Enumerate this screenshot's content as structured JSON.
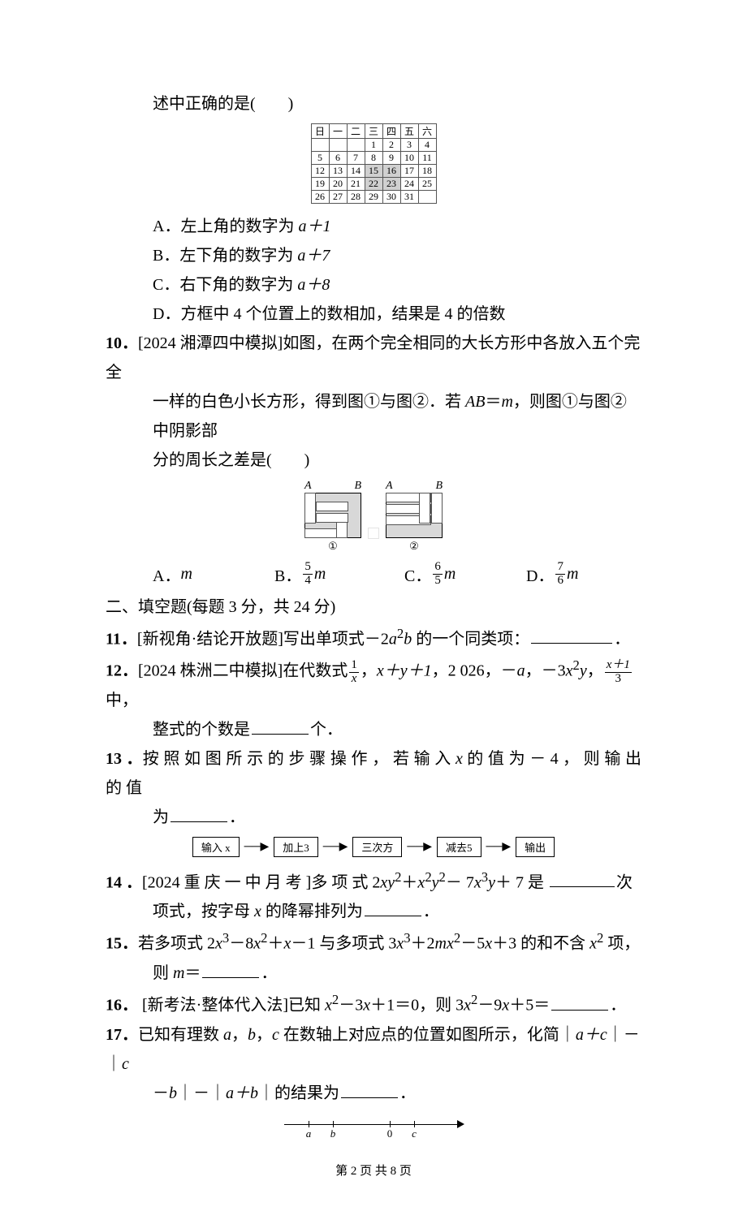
{
  "q_cont": {
    "tail": "述中正确的是(　　)"
  },
  "calendar": {
    "header": [
      "日",
      "一",
      "二",
      "三",
      "四",
      "五",
      "六"
    ],
    "rows": [
      [
        "",
        "",
        "",
        "1",
        "2",
        "3",
        "4"
      ],
      [
        "5",
        "6",
        "7",
        "8",
        "9",
        "10",
        "11"
      ],
      [
        "12",
        "13",
        "14",
        "15",
        "16",
        "17",
        "18"
      ],
      [
        "19",
        "20",
        "21",
        "22",
        "23",
        "24",
        "25"
      ],
      [
        "26",
        "27",
        "28",
        "29",
        "30",
        "31",
        ""
      ]
    ],
    "shaded": [
      [
        2,
        3
      ],
      [
        2,
        4
      ],
      [
        3,
        3
      ],
      [
        3,
        4
      ]
    ]
  },
  "q9_choices": {
    "A": "A．左上角的数字为",
    "A_expr": "a＋1",
    "B": "B．左下角的数字为",
    "B_expr": "a＋7",
    "C": "C．右下角的数字为",
    "C_expr": "a＋8",
    "D": "D．方框中 4 个位置上的数相加，结果是 4 的倍数"
  },
  "q10": {
    "num": "10．",
    "tag_open": "[2024 湘潭四中模拟]",
    "t1": "如图，在两个完全相同的大长方形中各放入五个完全",
    "t2": "一样的白色小长方形，得到图①与图②．若 ",
    "eq_lhs": "AB",
    "eq_mid": "＝",
    "eq_rhs": "m",
    "t3": "，则图①与图②中阴影部",
    "t4": "分的周长之差是(　　)",
    "labels": {
      "A": "A",
      "B": "B",
      "c1": "①",
      "c2": "②"
    },
    "choices": {
      "A_pre": "A．  ",
      "A_val": "m",
      "B_pre": "B．",
      "B_num": "5",
      "B_den": "4",
      "B_var": "m",
      "C_pre": "C．",
      "C_num": "6",
      "C_den": "5",
      "C_var": "m",
      "D_pre": "D．",
      "D_num": "7",
      "D_den": "6",
      "D_var": "m"
    }
  },
  "sec2": "二、填空题(每题 3 分，共 24 分)",
  "q11": {
    "num": "11．",
    "tag": "[新视角·结论开放题]",
    "t1": "写出单项式－2",
    "e1": "a",
    "sup1": "2",
    "e2": "b",
    "t2": " 的一个同类项：",
    "tail": "．"
  },
  "q12": {
    "num": "12．",
    "tag": "[2024 株洲二中模拟]",
    "t1": "在代数式",
    "f1n": "1",
    "f1d": "x",
    "t2": "，",
    "e1": "x＋y＋1",
    "t3": "，2 026，－",
    "e2": "a",
    "t4": "，－3",
    "e3": "x",
    "sup3": "2",
    "e4": "y",
    "t5": "，",
    "f2n": "x＋1",
    "f2d": "3",
    "t6": "中，",
    "t7": "整式的个数是",
    "t8": "个．"
  },
  "q13": {
    "num": "13 ．",
    "t1": "按 照 如 图 所 示 的 步 骤 操 作 ， 若 输 入 ",
    "var": "x",
    "t2": " 的 值 为 － 4 ， 则 输 出 的 值",
    "t3": "为",
    "t4": "．",
    "flow": [
      "输入 x",
      "加上3",
      "三次方",
      "减去5",
      "输出"
    ]
  },
  "q14": {
    "num": "14 ．",
    "tag": "[2024 重 庆 一 中 月 考 ]",
    "t1": "多 项 式 2",
    "e1": "xy",
    "s1": "2",
    "t2": "＋",
    "e2": "x",
    "s2": "2",
    "e3": "y",
    "s3": "2",
    "t3": "－ 7",
    "e4": "x",
    "s4": "3",
    "e5": "y",
    "t4": "＋ 7 是 ",
    "t5": "次",
    "t6": "项式，按字母 ",
    "vx": "x",
    "t7": " 的降幂排列为",
    "t8": "．"
  },
  "q15": {
    "num": "15．",
    "t1": "若多项式 2",
    "e1": "x",
    "s1": "3",
    "t2": "－8",
    "e2": "x",
    "s2": "2",
    "t3": "＋",
    "e3": "x",
    "t4": "－1 与多项式 3",
    "e4": "x",
    "s4": "3",
    "t5": "＋2",
    "e5": "mx",
    "s5": "2",
    "t6": "－5",
    "e6": "x",
    "t7": "＋3 的和不含 ",
    "e7": "x",
    "s7": "2",
    "t8": " 项，",
    "t9": "则 ",
    "e8": "m",
    "t10": "＝",
    "t11": "．"
  },
  "q16": {
    "num": "16．",
    "tag": " [新考法·整体代入法]",
    "t1": "已知 ",
    "e1": "x",
    "s1": "2",
    "t2": "－3",
    "e2": "x",
    "t3": "＋1＝0，则 3",
    "e3": "x",
    "s3": "2",
    "t4": "－9",
    "e4": "x",
    "t5": "＋5＝",
    "t6": "．"
  },
  "q17": {
    "num": "17．",
    "t1": "已知有理数 ",
    "ea": "a",
    "t2": "，",
    "eb": "b",
    "t3": "，",
    "ec": "c",
    "t4": " 在数轴上对应点的位置如图所示，化简｜",
    "e1": "a＋c",
    "t5": "｜－｜",
    "e2": "c",
    "t6": "－",
    "e3": "b",
    "t7": "｜－｜",
    "e4": "a＋b",
    "t8": "｜的结果为",
    "t9": "．",
    "ticks": {
      "a": "a",
      "b": "b",
      "zero": "0",
      "c": "c"
    }
  },
  "footer": "第 2 页 共 8 页"
}
